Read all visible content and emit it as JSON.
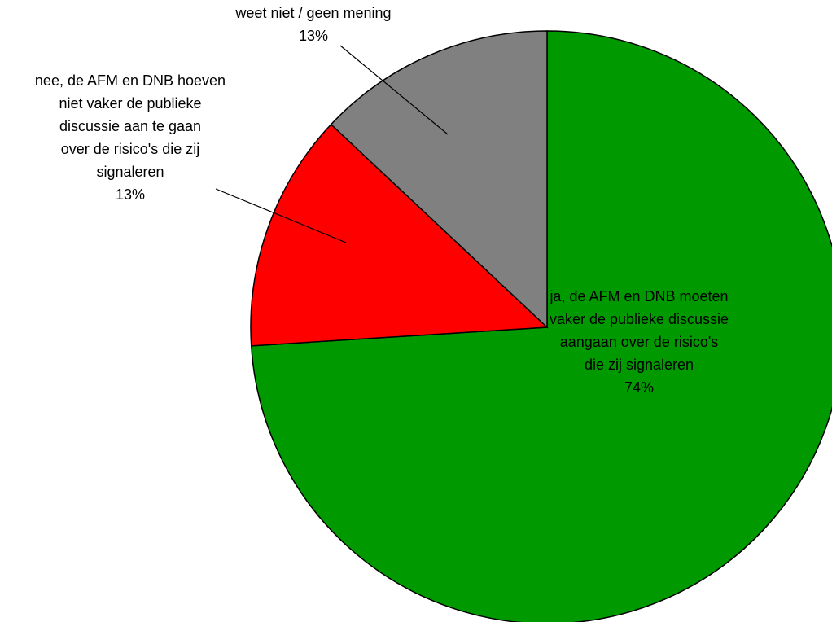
{
  "chart_data": {
    "type": "pie",
    "categories": [
      "ja, de AFM en DNB moeten vaker de publieke discussie aangaan over de risico's die zij signaleren",
      "nee, de AFM en DNB hoeven niet vaker de publieke discussie aan te gaan over de risico's die zij signaleren",
      "weet niet / geen mening"
    ],
    "values": [
      74,
      13,
      13
    ],
    "value_labels": [
      "74%",
      "13%",
      "13%"
    ],
    "colors": [
      "#009900",
      "#ff0000",
      "#808080"
    ]
  }
}
